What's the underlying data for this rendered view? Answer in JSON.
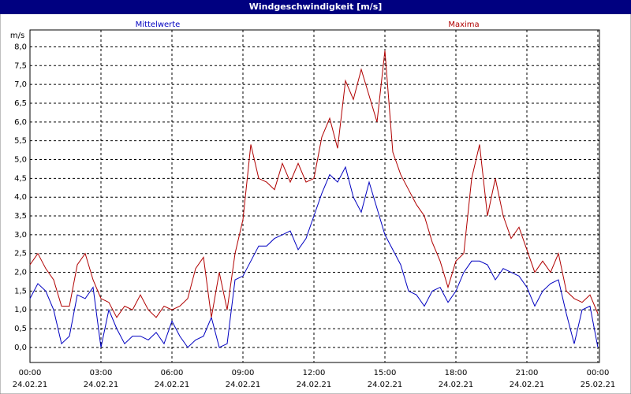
{
  "chart_data": {
    "type": "line",
    "title": "Windgeschwindigkeit [m/s]",
    "y_unit": "m/s",
    "x": [
      0,
      20,
      40,
      60,
      80,
      100,
      120,
      140,
      160,
      180,
      200,
      220,
      240,
      260,
      280,
      300,
      320,
      340,
      360,
      380,
      400,
      420,
      440,
      460,
      480,
      500,
      520,
      540,
      560,
      580,
      600,
      620,
      640,
      660,
      680,
      700,
      720,
      740,
      760,
      780,
      800,
      820,
      840,
      860,
      880,
      900,
      920,
      940,
      960,
      980,
      1000,
      1020,
      1040,
      1060,
      1080,
      1100,
      1120,
      1140,
      1160,
      1180,
      1200,
      1220,
      1240,
      1260,
      1280,
      1300,
      1320,
      1340,
      1360,
      1380,
      1400,
      1420,
      1440
    ],
    "series": [
      {
        "name": "Mittelwerte",
        "color": "#0000c0",
        "values": [
          1.3,
          1.7,
          1.5,
          1.0,
          0.1,
          0.3,
          1.4,
          1.3,
          1.6,
          0.0,
          1.0,
          0.5,
          0.1,
          0.3,
          0.3,
          0.2,
          0.4,
          0.1,
          0.7,
          0.3,
          0.0,
          0.2,
          0.3,
          0.8,
          0.0,
          0.1,
          1.8,
          1.9,
          2.3,
          2.7,
          2.7,
          2.9,
          3.0,
          3.1,
          2.6,
          2.9,
          3.5,
          4.1,
          4.6,
          4.4,
          4.8,
          4.0,
          3.6,
          4.4,
          3.7,
          3.0,
          2.6,
          2.2,
          1.5,
          1.4,
          1.1,
          1.5,
          1.6,
          1.2,
          1.5,
          2.0,
          2.3,
          2.3,
          2.2,
          1.8,
          2.1,
          2.0,
          1.9,
          1.6,
          1.1,
          1.5,
          1.7,
          1.8,
          0.9,
          0.1,
          1.0,
          1.1,
          0.0
        ]
      },
      {
        "name": "Maxima",
        "color": "#b00000",
        "values": [
          2.2,
          2.5,
          2.1,
          1.8,
          1.1,
          1.1,
          2.2,
          2.5,
          1.8,
          1.3,
          1.2,
          0.8,
          1.1,
          1.0,
          1.4,
          1.0,
          0.8,
          1.1,
          1.0,
          1.1,
          1.3,
          2.1,
          2.4,
          0.8,
          2.0,
          1.0,
          2.5,
          3.4,
          5.4,
          4.5,
          4.4,
          4.2,
          4.9,
          4.4,
          4.9,
          4.4,
          4.5,
          5.6,
          6.1,
          5.3,
          7.1,
          6.6,
          7.4,
          6.7,
          6.0,
          7.9,
          5.2,
          4.6,
          4.2,
          3.8,
          3.5,
          2.8,
          2.3,
          1.6,
          2.3,
          2.5,
          4.5,
          5.4,
          3.5,
          4.5,
          3.5,
          2.9,
          3.2,
          2.6,
          2.0,
          2.3,
          2.0,
          2.5,
          1.5,
          1.3,
          1.2,
          1.4,
          0.9
        ]
      }
    ],
    "xlim": [
      0,
      1440
    ],
    "xticks": [
      {
        "value": 0,
        "label": "00:00"
      },
      {
        "value": 180,
        "label": "03:00"
      },
      {
        "value": 360,
        "label": "06:00"
      },
      {
        "value": 540,
        "label": "09:00"
      },
      {
        "value": 720,
        "label": "12:00"
      },
      {
        "value": 900,
        "label": "15:00"
      },
      {
        "value": 1080,
        "label": "18:00"
      },
      {
        "value": 1260,
        "label": "21:00"
      },
      {
        "value": 1440,
        "label": "00:00"
      }
    ],
    "x_date_labels": [
      "24.02.21",
      "24.02.21",
      "24.02.21",
      "24.02.21",
      "24.02.21",
      "24.02.21",
      "24.02.21",
      "24.02.21",
      "25.02.21"
    ],
    "ylim": [
      -0.4,
      8.45
    ],
    "yticks": [
      {
        "value": 0,
        "label": "0,0"
      },
      {
        "value": 0.5,
        "label": "0,5"
      },
      {
        "value": 1,
        "label": "1,0"
      },
      {
        "value": 1.5,
        "label": "1,5"
      },
      {
        "value": 2,
        "label": "2,0"
      },
      {
        "value": 2.5,
        "label": "2,5"
      },
      {
        "value": 3,
        "label": "3,0"
      },
      {
        "value": 3.5,
        "label": "3,5"
      },
      {
        "value": 4,
        "label": "4,0"
      },
      {
        "value": 4.5,
        "label": "4,5"
      },
      {
        "value": 5,
        "label": "5,0"
      },
      {
        "value": 5.5,
        "label": "5,5"
      },
      {
        "value": 6,
        "label": "6,0"
      },
      {
        "value": 6.5,
        "label": "6,5"
      },
      {
        "value": 7,
        "label": "7,0"
      },
      {
        "value": 7.5,
        "label": "7,5"
      },
      {
        "value": 8,
        "label": "8,0"
      }
    ],
    "grid": true
  }
}
